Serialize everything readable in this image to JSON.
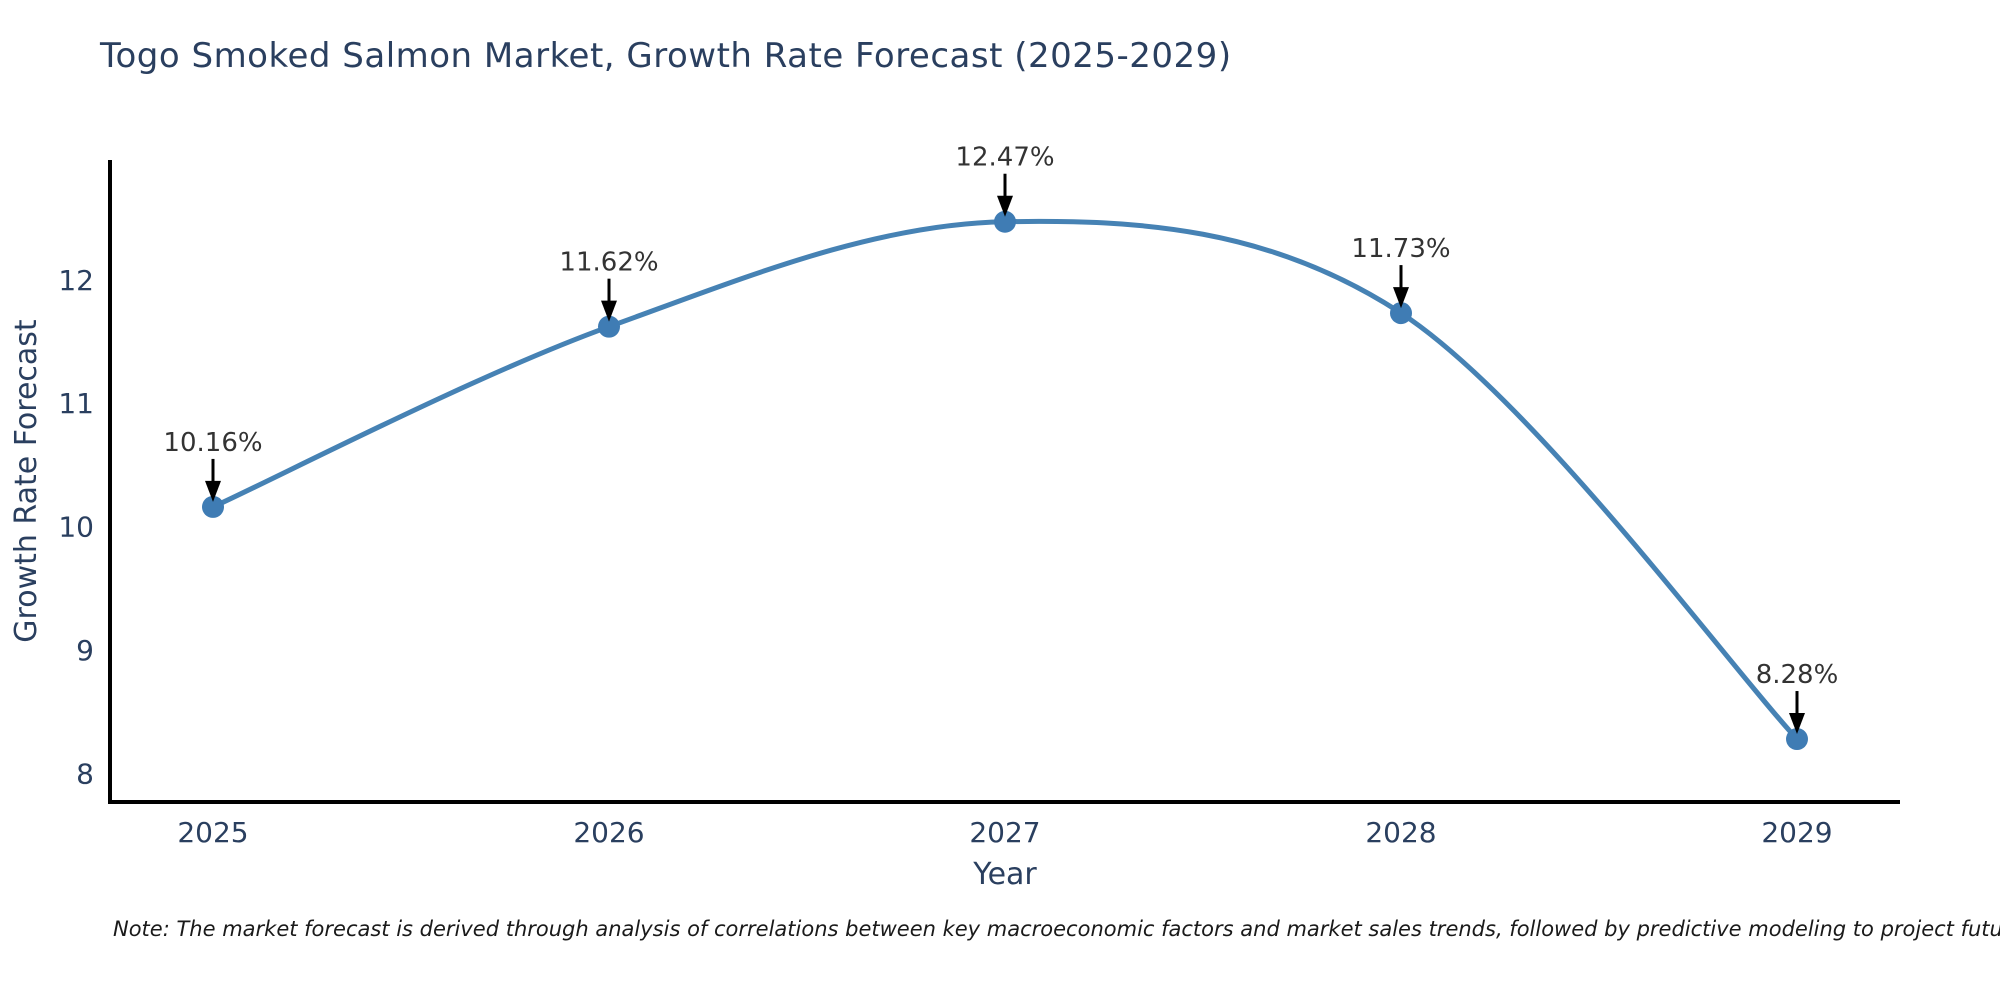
{
  "title": "Togo Smoked Salmon Market, Growth Rate Forecast (2025-2029)",
  "note": "Note: The market forecast is derived through analysis of correlations between key macroeconomic factors and market sales trends, followed by predictive modeling to project future sales",
  "colors": {
    "title_text": "#2a3f5f",
    "tick_text": "#2a3f5f",
    "axis_line": "#000000",
    "trace_line": "#4682B4",
    "marker_fill": "#3f7cb4",
    "annotation_text": "#333333",
    "annotation_arrow": "#000000",
    "note_text": "#1a1a1a",
    "background": "#ffffff"
  },
  "chart_data": {
    "type": "line",
    "title": "Togo Smoked Salmon Market, Growth Rate Forecast (2025-2029)",
    "x": [
      "2025",
      "2026",
      "2027",
      "2028",
      "2029"
    ],
    "values": [
      10.16,
      11.62,
      12.47,
      11.73,
      8.28
    ],
    "point_labels": [
      "10.16%",
      "11.62%",
      "12.47%",
      "11.73%",
      "8.28%"
    ],
    "xlabel": "Year",
    "ylabel": "Growth Rate Forecast",
    "yticks": [
      8,
      9,
      10,
      11,
      12
    ],
    "ylim": [
      7.77,
      12.97
    ],
    "line_shape": "spline",
    "grid": false,
    "legend_position": "none",
    "annotations": "value labels with down arrows above each point"
  }
}
